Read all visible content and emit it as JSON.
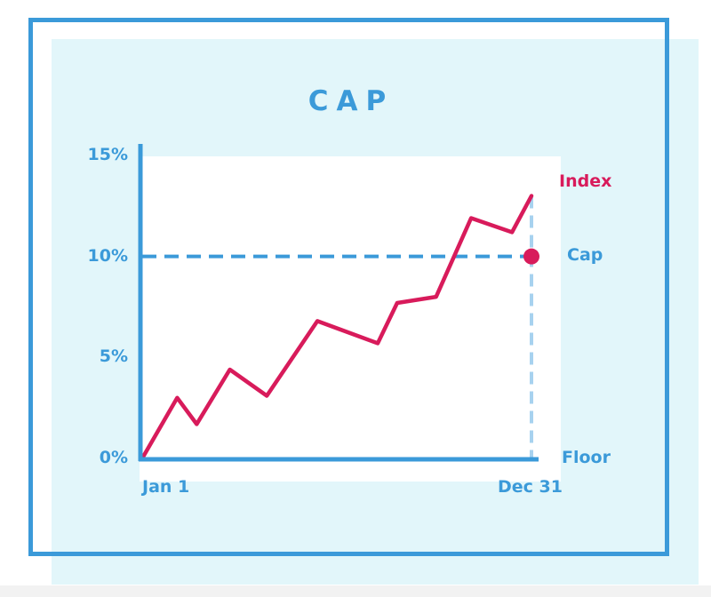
{
  "colors": {
    "axis": "#3b9ad9",
    "index_line": "#d81b5b",
    "cap_line": "#3b9ad9",
    "guide": "#a7d2ef",
    "panel_bg": "#e2f6fa"
  },
  "chart_data": {
    "type": "line",
    "title": "CAP",
    "ylim": [
      0,
      15
    ],
    "xlim": [
      0,
      20
    ],
    "yticks": [
      {
        "value": 0,
        "label": "0%"
      },
      {
        "value": 5,
        "label": "5%"
      },
      {
        "value": 10,
        "label": "10%"
      },
      {
        "value": 15,
        "label": "15%"
      }
    ],
    "xticks": [
      {
        "value": 0,
        "label": "Jan 1"
      },
      {
        "value": 20,
        "label": "Dec 31"
      }
    ],
    "series": [
      {
        "name": "Index",
        "x": [
          0,
          1.8,
          2.8,
          4.5,
          6.4,
          9,
          12.1,
          13.1,
          15.1,
          16.9,
          19,
          20
        ],
        "y": [
          0,
          3,
          1.7,
          4.4,
          3.1,
          6.8,
          5.7,
          7.7,
          8,
          11.9,
          11.2,
          13
        ]
      }
    ],
    "cap": {
      "label": "Cap",
      "value": 10
    },
    "floor": {
      "label": "Floor",
      "value": 0
    },
    "grid": false
  }
}
